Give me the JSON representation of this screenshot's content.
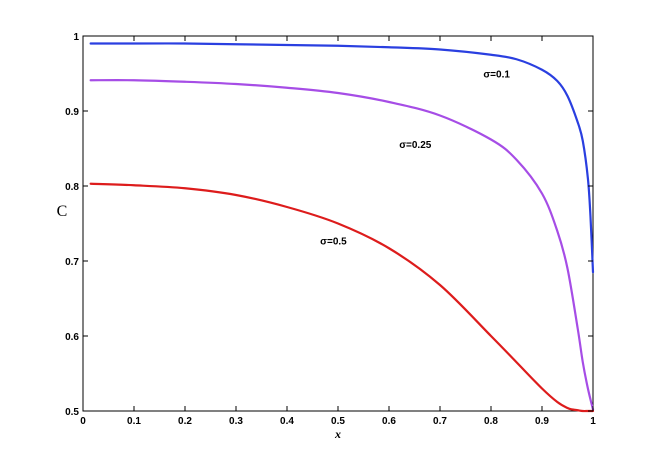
{
  "chart_data": {
    "type": "line",
    "title": "",
    "xlabel": "x",
    "ylabel": "C",
    "xlim": [
      0,
      1
    ],
    "ylim": [
      0.5,
      1
    ],
    "xticks": [
      "0",
      "0.1",
      "0.2",
      "0.3",
      "0.4",
      "0.5",
      "0.6",
      "0.7",
      "0.8",
      "0.9",
      "1"
    ],
    "yticks": [
      "0.5",
      "0.6",
      "0.7",
      "0.8",
      "0.9",
      "1"
    ],
    "grid": false,
    "series": [
      {
        "name": "σ=0.1",
        "color": "#2a3fe0",
        "x": [
          0.015,
          0.1,
          0.2,
          0.3,
          0.4,
          0.5,
          0.6,
          0.7,
          0.8,
          0.85,
          0.9,
          0.93,
          0.95,
          0.97,
          0.98,
          0.99,
          0.995,
          1.0
        ],
        "y": [
          0.99,
          0.99,
          0.99,
          0.989,
          0.988,
          0.987,
          0.985,
          0.982,
          0.975,
          0.969,
          0.955,
          0.94,
          0.92,
          0.885,
          0.86,
          0.81,
          0.76,
          0.685
        ]
      },
      {
        "name": "σ=0.25",
        "color": "#a64de6",
        "x": [
          0.015,
          0.1,
          0.2,
          0.3,
          0.4,
          0.5,
          0.6,
          0.7,
          0.8,
          0.85,
          0.9,
          0.93,
          0.95,
          0.97,
          0.98,
          0.99,
          1.0
        ],
        "y": [
          0.941,
          0.941,
          0.939,
          0.936,
          0.931,
          0.924,
          0.912,
          0.894,
          0.862,
          0.835,
          0.79,
          0.74,
          0.69,
          0.61,
          0.565,
          0.53,
          0.502
        ]
      },
      {
        "name": "σ=0.5",
        "color": "#dd1c1c",
        "x": [
          0.015,
          0.1,
          0.2,
          0.3,
          0.4,
          0.5,
          0.6,
          0.7,
          0.8,
          0.85,
          0.9,
          0.93,
          0.95,
          0.96,
          0.97,
          0.98,
          0.99,
          1.0
        ],
        "y": [
          0.803,
          0.801,
          0.797,
          0.788,
          0.772,
          0.75,
          0.717,
          0.668,
          0.6,
          0.565,
          0.53,
          0.512,
          0.504,
          0.502,
          0.501,
          0.5,
          0.5,
          0.5
        ]
      }
    ],
    "annotations": [
      {
        "text": "σ=0.1",
        "x": 0.785,
        "y": 0.945
      },
      {
        "text": "σ=0.25",
        "x": 0.62,
        "y": 0.851
      },
      {
        "text": "σ=0.5",
        "x": 0.465,
        "y": 0.722
      }
    ]
  }
}
